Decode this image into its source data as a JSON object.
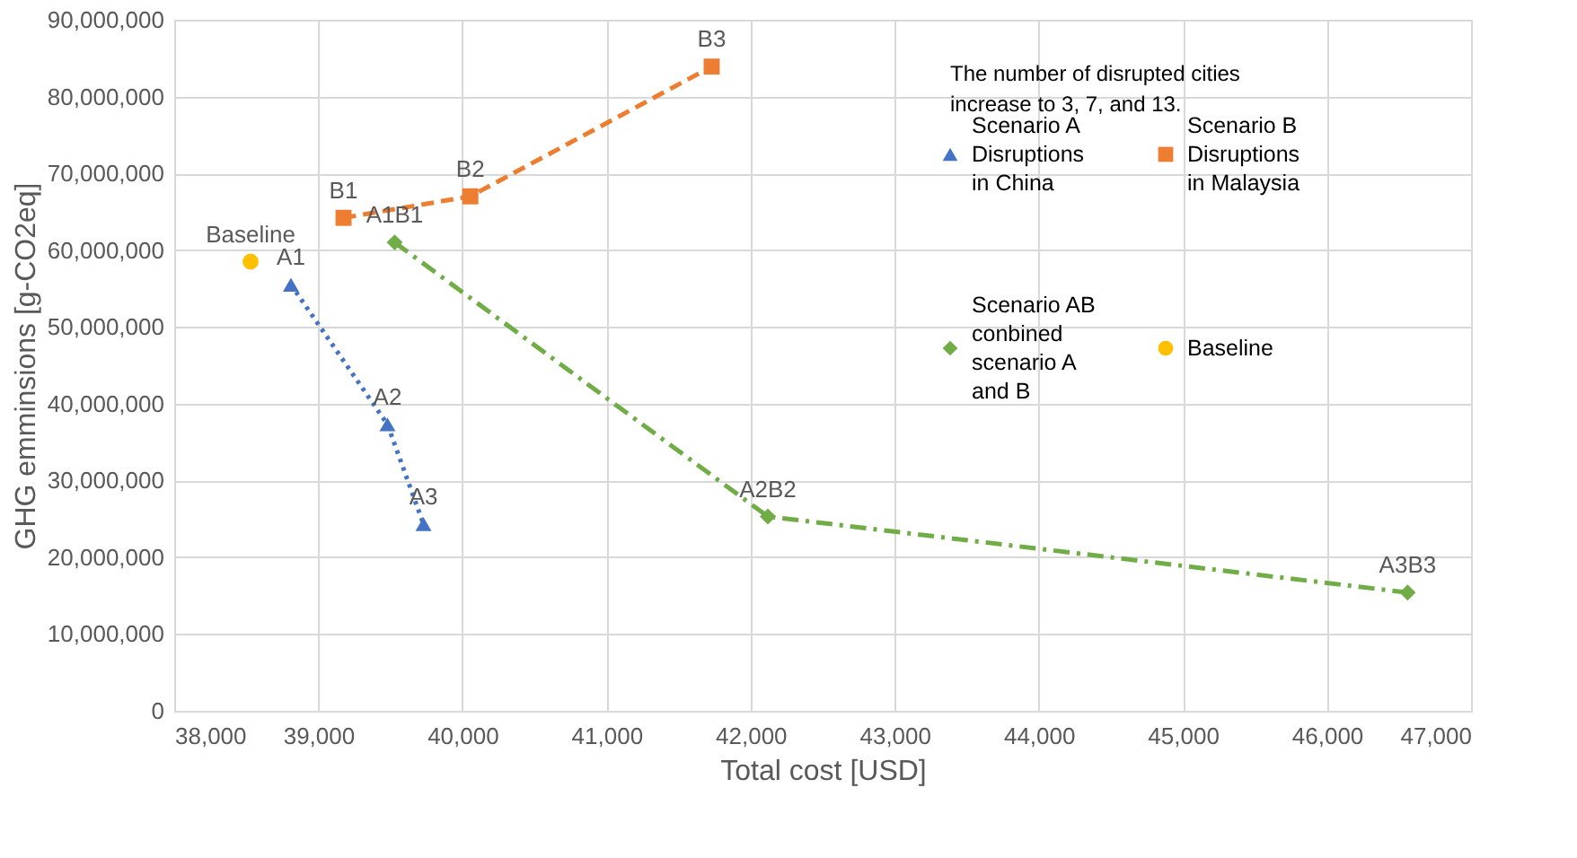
{
  "chart_data": {
    "type": "line",
    "xlabel": "Total cost [USD]",
    "ylabel": "GHG emminsions [g-CO2eq]",
    "xlim": [
      38000,
      47000
    ],
    "xticks": [
      {
        "value": 38000,
        "label": "38,000"
      },
      {
        "value": 39000,
        "label": "39,000"
      },
      {
        "value": 40000,
        "label": "40,000"
      },
      {
        "value": 41000,
        "label": "41,000"
      },
      {
        "value": 42000,
        "label": "42,000"
      },
      {
        "value": 43000,
        "label": "43,000"
      },
      {
        "value": 44000,
        "label": "44,000"
      },
      {
        "value": 45000,
        "label": "45,000"
      },
      {
        "value": 46000,
        "label": "46,000"
      },
      {
        "value": 47000,
        "label": "47,000"
      }
    ],
    "ylim": [
      0,
      90000000
    ],
    "yticks": [
      0,
      {
        "value": 10000000,
        "label": "10,000,000"
      },
      {
        "value": 20000000,
        "label": "20,000,000"
      },
      {
        "value": 30000000,
        "label": "30,000,000"
      },
      {
        "value": 40000000,
        "label": "40,000,000"
      },
      {
        "value": 50000000,
        "label": "50,000,000"
      },
      {
        "value": 60000000,
        "label": "60,000,000"
      },
      {
        "value": 70000000,
        "label": "70,000,000"
      },
      {
        "value": 80000000,
        "label": "80,000,000"
      },
      {
        "value": 90000000,
        "label": "90,000,000"
      }
    ],
    "grid": true,
    "legend": "top right",
    "series": [
      {
        "name": "Scenario A Disruptions in China",
        "color": "#4472c4",
        "marker": "triangle",
        "line_style": "dotted",
        "x": [
          38810,
          39480,
          39730
        ],
        "values": [
          55500000,
          37300000,
          24300000
        ]
      },
      {
        "name": "Scenario B Disruptions in Malaysia",
        "color": "#ed7d31",
        "marker": "square",
        "line_style": "dashed",
        "x": [
          39175,
          40055,
          41730
        ],
        "values": [
          64200000,
          67000000,
          83900000
        ]
      },
      {
        "name": "Scenario AB conbined scenario A and B",
        "color": "#70ad47",
        "marker": "diamond",
        "line_style": "dashdot",
        "x": [
          39530,
          42120,
          46560
        ],
        "values": [
          61000000,
          25300000,
          15400000
        ]
      },
      {
        "name": "Baseline",
        "type": "scatter",
        "color": "#ffc000",
        "marker": "circle",
        "x": [
          38530
        ],
        "values": [
          58500000
        ]
      }
    ],
    "annotations": [
      "The number of disrupted cities increase to 3, 7, and 13.",
      {
        "text": "Baseline",
        "x": 38530,
        "y": 58500000
      },
      {
        "text": "A1",
        "x": 38810,
        "y": 55500000
      },
      {
        "text": "A2",
        "x": 39480,
        "y": 37300000
      },
      {
        "text": "A3",
        "x": 39730,
        "y": 24300000
      },
      {
        "text": "B1",
        "x": 39175,
        "y": 64200000
      },
      {
        "text": "B2",
        "x": 40055,
        "y": 67000000
      },
      {
        "text": "B3",
        "x": 41730,
        "y": 83900000
      },
      {
        "text": "A1B1",
        "x": 39530,
        "y": 61000000
      },
      {
        "text": "A2B2",
        "x": 42120,
        "y": 25300000
      },
      {
        "text": "A3B3",
        "x": 46560,
        "y": 15400000
      }
    ]
  }
}
